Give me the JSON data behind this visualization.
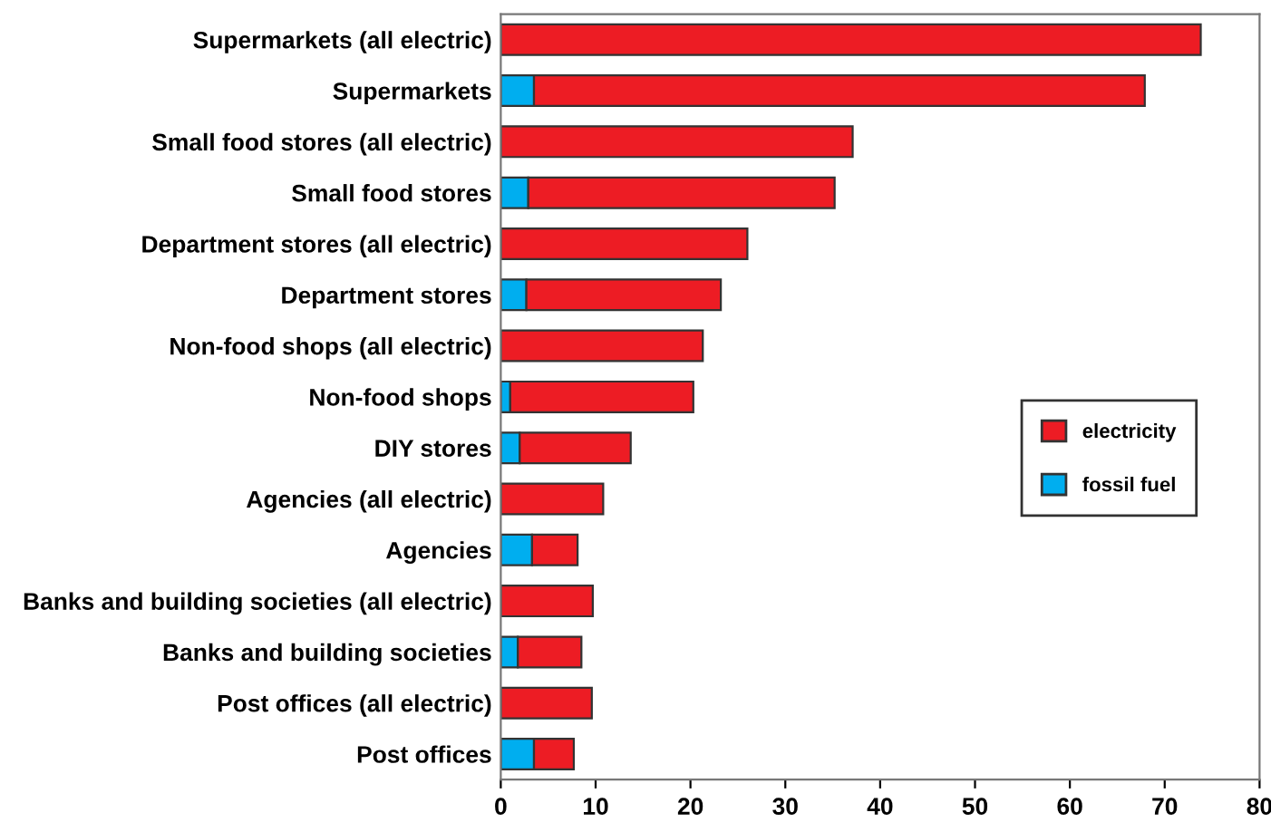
{
  "chart_data": {
    "type": "bar",
    "orientation": "horizontal",
    "stacked": true,
    "categories": [
      "Supermarkets (all electric)",
      "Supermarkets",
      "Small food stores (all electric)",
      "Small food stores",
      "Department stores (all electric)",
      "Department stores",
      "Non-food shops (all electric)",
      "Non-food shops",
      "DIY stores",
      "Agencies (all electric)",
      "Agencies",
      "Banks and building societies (all electric)",
      "Banks and building societies",
      "Post offices (all electric)",
      "Post offices"
    ],
    "series": [
      {
        "name": "fossil fuel",
        "color": "#00aeef",
        "values": [
          null,
          3.5,
          null,
          2.9,
          null,
          2.7,
          null,
          1.0,
          2.0,
          null,
          3.3,
          null,
          1.8,
          null,
          3.5
        ]
      },
      {
        "name": "electricity",
        "color": "#ed1c24",
        "values": [
          73.8,
          64.4,
          37.1,
          32.3,
          26.0,
          20.5,
          21.3,
          19.3,
          11.7,
          10.8,
          4.8,
          9.7,
          6.7,
          9.6,
          4.2
        ]
      }
    ],
    "xlim": [
      0,
      80
    ],
    "xticks": [
      0,
      10,
      20,
      30,
      40,
      50,
      60,
      70,
      80
    ],
    "grid": false,
    "legend": "right"
  }
}
